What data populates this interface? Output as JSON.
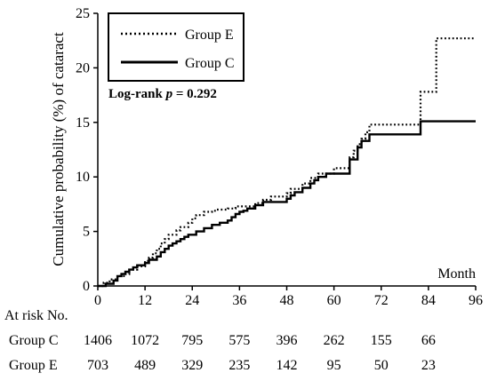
{
  "chart_data": {
    "type": "line",
    "subtype": "step",
    "title": "",
    "xlabel": "Month",
    "ylabel": "Cumulative probability (%) of cataract",
    "xlim": [
      0,
      96
    ],
    "ylim": [
      0,
      25
    ],
    "xticks": [
      "0",
      "12",
      "24",
      "36",
      "48",
      "60",
      "72",
      "84",
      "96"
    ],
    "yticks": [
      "0",
      "5",
      "10",
      "15",
      "20",
      "25"
    ],
    "grid": false,
    "legend_position": "top-left",
    "annotation": {
      "prefix": "Log-rank ",
      "p_symbol": "p",
      "suffix": " = 0.292"
    },
    "series": [
      {
        "name": "Group E",
        "style": "dotted",
        "color": "#000000",
        "x": [
          0,
          1.5,
          3,
          5,
          7,
          8,
          10,
          12,
          13,
          14,
          15,
          16,
          17,
          18,
          20,
          21,
          23,
          24,
          25,
          27,
          29,
          30,
          33,
          35,
          37,
          40,
          42,
          44,
          48,
          49,
          52,
          54,
          56,
          58,
          60,
          62,
          64,
          65,
          66,
          67,
          68,
          69,
          72,
          77,
          80,
          82,
          83,
          86,
          96
        ],
        "y": [
          0,
          0.3,
          0.6,
          0.9,
          1.1,
          1.5,
          1.8,
          2.3,
          2.6,
          3.0,
          3.4,
          3.9,
          4.3,
          4.7,
          5.1,
          5.4,
          5.8,
          6.2,
          6.5,
          6.8,
          6.9,
          7.0,
          7.1,
          7.3,
          7.3,
          7.6,
          7.9,
          8.2,
          8.5,
          8.9,
          9.4,
          9.9,
          10.3,
          10.3,
          10.8,
          10.8,
          11.8,
          12.4,
          13.0,
          13.5,
          14.1,
          14.8,
          14.8,
          14.8,
          14.8,
          17.8,
          17.8,
          22.7,
          22.7
        ]
      },
      {
        "name": "Group C",
        "style": "solid",
        "color": "#000000",
        "x": [
          0,
          2,
          4,
          5,
          6,
          7,
          8,
          9,
          10,
          12,
          13,
          15,
          16,
          17,
          18,
          19,
          20,
          21,
          22,
          23,
          25,
          27,
          29,
          31,
          33,
          34,
          35,
          36,
          37,
          38,
          40,
          42,
          44,
          46,
          48,
          49,
          50,
          52,
          54,
          55,
          56,
          58,
          60,
          64,
          66,
          67,
          68,
          69,
          70,
          72,
          80,
          82,
          83,
          96
        ],
        "y": [
          0,
          0.2,
          0.5,
          0.9,
          1.1,
          1.3,
          1.5,
          1.7,
          1.9,
          2.1,
          2.4,
          2.7,
          3.1,
          3.4,
          3.7,
          3.9,
          4.1,
          4.3,
          4.5,
          4.7,
          5.0,
          5.3,
          5.6,
          5.8,
          6.0,
          6.3,
          6.6,
          6.8,
          6.9,
          7.1,
          7.4,
          7.7,
          7.7,
          7.7,
          8.0,
          8.3,
          8.6,
          9.0,
          9.4,
          9.7,
          10.0,
          10.3,
          10.3,
          11.6,
          12.7,
          13.3,
          13.3,
          13.9,
          13.9,
          13.9,
          13.9,
          15.1,
          15.1,
          15.1
        ]
      }
    ],
    "risk_table": {
      "header": "At risk No.",
      "rows": [
        {
          "label": "Group C",
          "values": [
            "1406",
            "1072",
            "795",
            "575",
            "396",
            "262",
            "155",
            "66"
          ]
        },
        {
          "label": "Group E",
          "values": [
            "703",
            "489",
            "329",
            "235",
            "142",
            "95",
            "50",
            "23"
          ]
        }
      ]
    }
  }
}
